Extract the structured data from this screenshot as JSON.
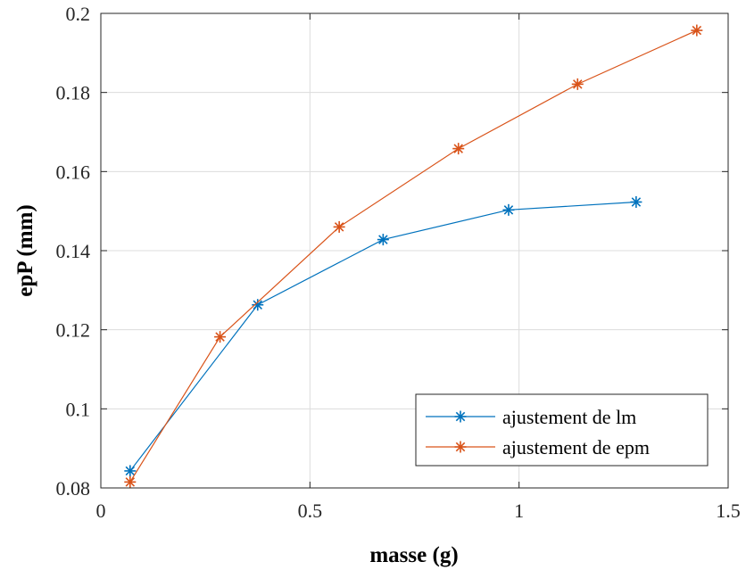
{
  "chart_data": {
    "type": "line",
    "title": "",
    "xlabel": "masse (g)",
    "ylabel": "epP (mm)",
    "xlim": [
      0,
      1.5
    ],
    "ylim": [
      0.08,
      0.2
    ],
    "xticks": [
      0,
      0.5,
      1,
      1.5
    ],
    "xtick_labels": [
      "0",
      "0.5",
      "1",
      "1.5"
    ],
    "yticks": [
      0.08,
      0.1,
      0.12,
      0.14,
      0.16,
      0.18,
      0.2
    ],
    "ytick_labels": [
      "0.08",
      "0.1",
      "0.12",
      "0.14",
      "0.16",
      "0.18",
      "0.2"
    ],
    "grid": true,
    "legend_position": "bottom-right",
    "series": [
      {
        "name": "ajustement de lm",
        "color": "#0072BD",
        "marker": "asterisk",
        "x": [
          0.07,
          0.375,
          0.675,
          0.975,
          1.28
        ],
        "y": [
          0.0843,
          0.1263,
          0.1428,
          0.1503,
          0.1523
        ]
      },
      {
        "name": "ajustement de epm",
        "color": "#D95319",
        "marker": "asterisk",
        "x": [
          0.07,
          0.285,
          0.57,
          0.855,
          1.14,
          1.425
        ],
        "y": [
          0.0815,
          0.1182,
          0.146,
          0.1658,
          0.1821,
          0.1957
        ]
      }
    ]
  }
}
